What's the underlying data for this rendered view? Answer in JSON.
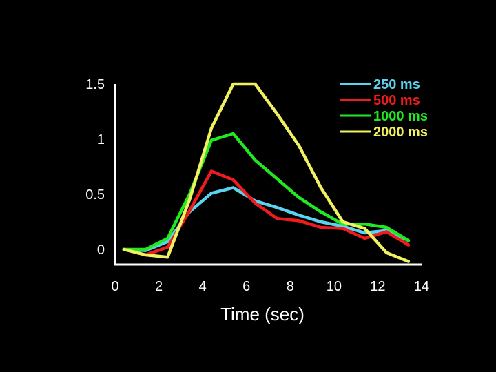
{
  "chart_data": {
    "type": "line",
    "title": "",
    "xlabel": "Time (sec)",
    "ylabel": "",
    "xlim": [
      0,
      14
    ],
    "ylim": [
      0,
      1.5
    ],
    "xticks": [
      0,
      2,
      4,
      6,
      8,
      10,
      12,
      14
    ],
    "xtick_labels": [
      "0",
      "2",
      "4",
      "6",
      "8",
      "10",
      "12",
      "14"
    ],
    "yticks": [
      0,
      0.5,
      1,
      1.5
    ],
    "ytick_labels": [
      "0",
      "0.5",
      "1",
      "1.5"
    ],
    "legend": "top-right",
    "grid": false,
    "series": [
      {
        "name": "250 ms",
        "color": "#5bd3f0",
        "x": [
          0.4,
          1.4,
          2.4,
          3.4,
          4.4,
          5.4,
          6.4,
          7.4,
          8.4,
          9.4,
          10.4,
          11.4,
          12.4,
          13.4
        ],
        "y": [
          0.0,
          -0.01,
          0.07,
          0.34,
          0.51,
          0.56,
          0.44,
          0.38,
          0.31,
          0.25,
          0.21,
          0.15,
          0.17,
          0.08
        ]
      },
      {
        "name": "500 ms",
        "color": "#ee1c1c",
        "x": [
          0.4,
          1.4,
          2.4,
          3.4,
          4.4,
          5.4,
          6.4,
          7.4,
          8.4,
          9.4,
          10.4,
          11.4,
          12.4,
          13.4
        ],
        "y": [
          0.0,
          -0.05,
          0.02,
          0.35,
          0.71,
          0.63,
          0.42,
          0.28,
          0.26,
          0.2,
          0.19,
          0.1,
          0.16,
          0.04
        ]
      },
      {
        "name": "1000 ms",
        "color": "#22e822",
        "x": [
          0.4,
          1.4,
          2.4,
          3.4,
          4.4,
          5.4,
          6.4,
          7.4,
          8.4,
          9.4,
          10.4,
          11.4,
          12.4,
          13.4
        ],
        "y": [
          0.0,
          0.0,
          0.1,
          0.5,
          0.99,
          1.05,
          0.81,
          0.64,
          0.47,
          0.34,
          0.23,
          0.23,
          0.2,
          0.08
        ]
      },
      {
        "name": "2000 ms",
        "color": "#f0f060",
        "x": [
          0.4,
          1.4,
          2.4,
          3.4,
          4.4,
          5.4,
          6.4,
          7.4,
          8.4,
          9.4,
          10.4,
          11.4,
          12.4,
          13.4
        ],
        "y": [
          0.0,
          -0.05,
          -0.07,
          0.45,
          1.1,
          1.5,
          1.5,
          1.23,
          0.94,
          0.56,
          0.25,
          0.19,
          -0.03,
          -0.11
        ]
      }
    ]
  }
}
